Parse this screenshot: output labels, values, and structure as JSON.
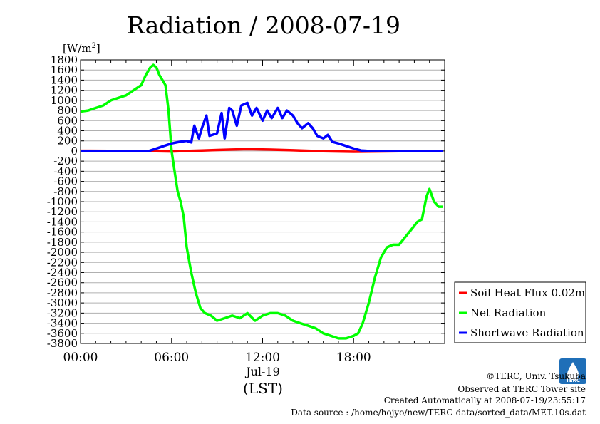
{
  "title": "Radiation / 2008-07-19",
  "unit_label": {
    "prefix": "[W/m",
    "sup": "2",
    "suffix": "]"
  },
  "chart_data": {
    "type": "line",
    "xlabel": "(LST)",
    "date_label": "Jul-19",
    "xticks": [
      {
        "hour": 0,
        "label": "00:00"
      },
      {
        "hour": 6,
        "label": "06:00"
      },
      {
        "hour": 12,
        "label": "12:00"
      },
      {
        "hour": 18,
        "label": "18:00"
      }
    ],
    "xlim": [
      0,
      24
    ],
    "ylim": [
      -3800,
      1800
    ],
    "ytick_step": 200,
    "grid": true,
    "legend_position": "bottom-right",
    "series": [
      {
        "name": "Soil Heat Flux 0.02m",
        "color": "#ff0000",
        "points": [
          [
            0,
            5
          ],
          [
            3,
            0
          ],
          [
            5,
            -5
          ],
          [
            6,
            -10
          ],
          [
            7,
            0
          ],
          [
            8,
            10
          ],
          [
            9,
            20
          ],
          [
            10,
            28
          ],
          [
            11,
            35
          ],
          [
            12,
            32
          ],
          [
            13,
            25
          ],
          [
            14,
            15
          ],
          [
            15,
            5
          ],
          [
            16,
            -5
          ],
          [
            17,
            -10
          ],
          [
            18,
            -15
          ],
          [
            19,
            -12
          ],
          [
            20,
            -8
          ],
          [
            21,
            -5
          ],
          [
            22,
            -3
          ],
          [
            23,
            0
          ],
          [
            23.9,
            0
          ]
        ]
      },
      {
        "name": "Net Radiation",
        "color": "#00ff00",
        "points": [
          [
            0,
            780
          ],
          [
            0.5,
            800
          ],
          [
            1,
            850
          ],
          [
            1.5,
            900
          ],
          [
            2,
            1000
          ],
          [
            2.5,
            1050
          ],
          [
            3,
            1100
          ],
          [
            3.5,
            1200
          ],
          [
            4,
            1300
          ],
          [
            4.3,
            1500
          ],
          [
            4.6,
            1650
          ],
          [
            4.8,
            1700
          ],
          [
            5,
            1650
          ],
          [
            5.2,
            1500
          ],
          [
            5.4,
            1400
          ],
          [
            5.6,
            1300
          ],
          [
            5.8,
            800
          ],
          [
            6,
            0
          ],
          [
            6.2,
            -400
          ],
          [
            6.4,
            -800
          ],
          [
            6.6,
            -1000
          ],
          [
            6.8,
            -1300
          ],
          [
            7,
            -1900
          ],
          [
            7.3,
            -2400
          ],
          [
            7.6,
            -2800
          ],
          [
            7.9,
            -3100
          ],
          [
            8.2,
            -3200
          ],
          [
            8.6,
            -3250
          ],
          [
            9,
            -3350
          ],
          [
            9.5,
            -3300
          ],
          [
            10,
            -3250
          ],
          [
            10.5,
            -3300
          ],
          [
            11,
            -3200
          ],
          [
            11.5,
            -3350
          ],
          [
            12,
            -3250
          ],
          [
            12.5,
            -3200
          ],
          [
            13,
            -3200
          ],
          [
            13.5,
            -3250
          ],
          [
            14,
            -3350
          ],
          [
            14.5,
            -3400
          ],
          [
            15,
            -3450
          ],
          [
            15.5,
            -3500
          ],
          [
            16,
            -3600
          ],
          [
            16.5,
            -3650
          ],
          [
            17,
            -3700
          ],
          [
            17.5,
            -3700
          ],
          [
            18,
            -3650
          ],
          [
            18.3,
            -3600
          ],
          [
            18.6,
            -3400
          ],
          [
            19,
            -3000
          ],
          [
            19.4,
            -2500
          ],
          [
            19.8,
            -2100
          ],
          [
            20.2,
            -1900
          ],
          [
            20.6,
            -1850
          ],
          [
            21,
            -1850
          ],
          [
            21.4,
            -1700
          ],
          [
            21.8,
            -1550
          ],
          [
            22.2,
            -1400
          ],
          [
            22.5,
            -1350
          ],
          [
            22.8,
            -900
          ],
          [
            23,
            -750
          ],
          [
            23.3,
            -1000
          ],
          [
            23.6,
            -1100
          ],
          [
            23.9,
            -1100
          ]
        ]
      },
      {
        "name": "Shortwave Radiation",
        "color": "#0000ff",
        "points": [
          [
            0,
            0
          ],
          [
            4.5,
            0
          ],
          [
            5,
            50
          ],
          [
            5.5,
            100
          ],
          [
            6,
            150
          ],
          [
            6.5,
            180
          ],
          [
            7,
            200
          ],
          [
            7.3,
            170
          ],
          [
            7.5,
            500
          ],
          [
            7.8,
            250
          ],
          [
            8,
            450
          ],
          [
            8.3,
            700
          ],
          [
            8.5,
            300
          ],
          [
            9,
            350
          ],
          [
            9.3,
            750
          ],
          [
            9.5,
            250
          ],
          [
            9.8,
            850
          ],
          [
            10,
            800
          ],
          [
            10.3,
            500
          ],
          [
            10.6,
            900
          ],
          [
            11,
            950
          ],
          [
            11.3,
            700
          ],
          [
            11.6,
            850
          ],
          [
            12,
            600
          ],
          [
            12.3,
            800
          ],
          [
            12.6,
            650
          ],
          [
            13,
            850
          ],
          [
            13.3,
            650
          ],
          [
            13.6,
            800
          ],
          [
            14,
            700
          ],
          [
            14.3,
            550
          ],
          [
            14.6,
            450
          ],
          [
            15,
            550
          ],
          [
            15.3,
            450
          ],
          [
            15.6,
            300
          ],
          [
            16,
            250
          ],
          [
            16.3,
            320
          ],
          [
            16.6,
            180
          ],
          [
            17,
            150
          ],
          [
            17.5,
            100
          ],
          [
            18,
            50
          ],
          [
            18.5,
            10
          ],
          [
            19,
            0
          ],
          [
            23.9,
            0
          ]
        ]
      }
    ]
  },
  "footer": {
    "copyright": "©TERC, Univ. Tsukuba",
    "site": "Observed at TERC Tower site",
    "created": "Created Automatically at 2008-07-19/23:55:17",
    "source": "Data source : /home/hojyo/new/TERC-data/sorted_data/MET.10s.dat"
  },
  "logo": {
    "text": "TERC",
    "color": "#1f6fb8"
  }
}
